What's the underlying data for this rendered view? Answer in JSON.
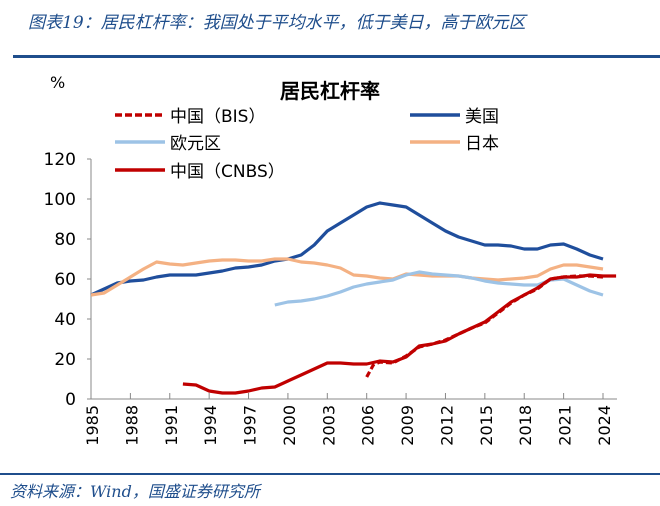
{
  "header": {
    "title": "图表19：居民杠杆率：我国处于平均水平，低于美日，高于欧元区"
  },
  "footer": {
    "source": "资料来源：Wind，国盛证券研究所"
  },
  "chart_data": {
    "type": "line",
    "title": "居民杠杆率",
    "ylabel": "%",
    "ylim": [
      0,
      120
    ],
    "yticks": [
      0,
      20,
      40,
      60,
      80,
      100,
      120
    ],
    "xlim": [
      1985,
      2025
    ],
    "xticks": [
      1985,
      1988,
      1991,
      1994,
      1997,
      2000,
      2003,
      2006,
      2009,
      2012,
      2015,
      2018,
      2021,
      2024
    ],
    "grid": false,
    "legend": "top",
    "series": [
      {
        "name": "中国（BIS）",
        "color": "#c00000",
        "dash": true,
        "x": [
          2006,
          2006.5,
          2007,
          2008,
          2009,
          2010,
          2011,
          2012,
          2013,
          2014,
          2015,
          2016,
          2017,
          2018,
          2019,
          2020,
          2021,
          2022,
          2023,
          2024
        ],
        "values": [
          11,
          17,
          18.5,
          18,
          21.5,
          26,
          27.5,
          29.5,
          32.5,
          35.5,
          38,
          43,
          48,
          52,
          55,
          60,
          61,
          61.5,
          61.5,
          61
        ]
      },
      {
        "name": "美国",
        "color": "#1f4e9c",
        "x": [
          1985,
          1986,
          1987,
          1988,
          1989,
          1990,
          1991,
          1992,
          1993,
          1994,
          1995,
          1996,
          1997,
          1998,
          1999,
          2000,
          2001,
          2002,
          2003,
          2004,
          2005,
          2006,
          2007,
          2008,
          2009,
          2010,
          2011,
          2012,
          2013,
          2014,
          2015,
          2016,
          2017,
          2018,
          2019,
          2020,
          2021,
          2022,
          2023,
          2024
        ],
        "values": [
          52,
          55,
          58,
          59,
          59.5,
          61,
          62,
          62,
          62,
          63,
          64,
          65.5,
          66,
          67,
          69,
          70,
          72,
          77,
          84,
          88,
          92,
          96,
          98,
          97,
          96,
          92,
          88,
          84,
          81,
          79,
          77,
          77,
          76.5,
          75,
          75,
          77,
          77.5,
          75,
          72,
          70
        ]
      },
      {
        "name": "欧元区",
        "color": "#9dc3e6",
        "x": [
          1999,
          2000,
          2001,
          2002,
          2003,
          2004,
          2005,
          2006,
          2007,
          2008,
          2009,
          2010,
          2011,
          2012,
          2013,
          2014,
          2015,
          2016,
          2017,
          2018,
          2019,
          2020,
          2021,
          2022,
          2023,
          2024
        ],
        "values": [
          47,
          48.5,
          49,
          50,
          51.5,
          53.5,
          56,
          57.5,
          58.5,
          59.5,
          62,
          63.5,
          62.5,
          62,
          61.5,
          60.5,
          59,
          58,
          57.5,
          57,
          57,
          59.5,
          60,
          57,
          54,
          52
        ]
      },
      {
        "name": "日本",
        "color": "#f4b183",
        "x": [
          1985,
          1986,
          1987,
          1988,
          1989,
          1990,
          1991,
          1992,
          1993,
          1994,
          1995,
          1996,
          1997,
          1998,
          1999,
          2000,
          2001,
          2002,
          2003,
          2004,
          2005,
          2006,
          2007,
          2008,
          2009,
          2010,
          2011,
          2012,
          2013,
          2014,
          2015,
          2016,
          2017,
          2018,
          2019,
          2020,
          2021,
          2022,
          2023,
          2024
        ],
        "values": [
          52,
          53,
          57,
          61,
          65,
          68.5,
          67.5,
          67,
          68,
          69,
          69.5,
          69.5,
          69,
          69,
          70,
          70,
          68.5,
          68,
          67,
          65.5,
          62,
          61.5,
          60.5,
          60,
          62.5,
          62,
          61.5,
          61.5,
          61.5,
          60.5,
          60,
          59.5,
          60,
          60.5,
          61.5,
          65,
          67,
          67,
          66,
          65
        ]
      },
      {
        "name": "中国（CNBS）",
        "color": "#c00000",
        "x": [
          1992,
          1993,
          1994,
          1995,
          1996,
          1997,
          1998,
          1999,
          2000,
          2001,
          2002,
          2003,
          2004,
          2005,
          2006,
          2007,
          2008,
          2009,
          2010,
          2011,
          2012,
          2013,
          2014,
          2015,
          2016,
          2017,
          2018,
          2019,
          2020,
          2021,
          2022,
          2023,
          2024,
          2025
        ],
        "values": [
          7.5,
          7,
          4,
          3,
          3,
          4,
          5.5,
          6,
          9,
          12,
          15,
          18,
          18,
          17.5,
          17.5,
          19,
          18.5,
          21,
          26.5,
          27.5,
          29,
          32.5,
          35.5,
          38.5,
          43.5,
          48.5,
          52,
          55.5,
          60,
          61,
          61,
          62,
          61.5,
          61.5
        ]
      }
    ]
  }
}
